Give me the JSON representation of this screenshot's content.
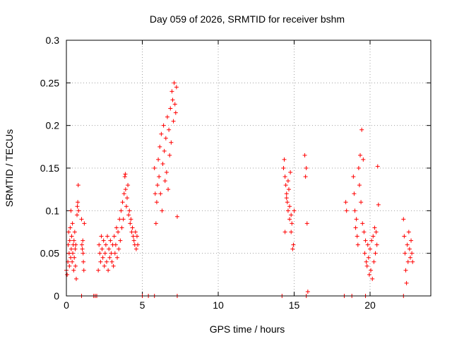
{
  "chart_data": {
    "type": "scatter",
    "title": "Day 059 of 2026, SRMTID for receiver bshm",
    "xlabel": "GPS time / hours",
    "ylabel": "SRMTID / TECUs",
    "xlim": [
      0,
      24
    ],
    "ylim": [
      0,
      0.3
    ],
    "xticks": [
      0,
      5,
      10,
      15,
      20
    ],
    "xtick_labels": [
      "0",
      "5",
      "10",
      "15",
      "20"
    ],
    "yticks": [
      0,
      0.05,
      0.1,
      0.15,
      0.2,
      0.25,
      0.3
    ],
    "ytick_labels": [
      "0",
      "0.05",
      "0.1",
      "0.15",
      "0.2",
      "0.25",
      "0.3"
    ],
    "grid": true,
    "marker": "plus",
    "color": "#ff0000",
    "series": [
      {
        "name": "SRMTID",
        "points": [
          [
            0.0,
            0.03
          ],
          [
            0.05,
            0.025
          ],
          [
            0.1,
            0.04
          ],
          [
            0.12,
            0.06
          ],
          [
            0.15,
            0.075
          ],
          [
            0.18,
            0.05
          ],
          [
            0.2,
            0.035
          ],
          [
            0.22,
            0.065
          ],
          [
            0.25,
            0.08
          ],
          [
            0.28,
            0.045
          ],
          [
            0.3,
            0.1
          ],
          [
            0.32,
            0.055
          ],
          [
            0.35,
            0.07
          ],
          [
            0.38,
            0.04
          ],
          [
            0.4,
            0.085
          ],
          [
            0.42,
            0.05
          ],
          [
            0.45,
            0.06
          ],
          [
            0.48,
            0.03
          ],
          [
            0.5,
            0.065
          ],
          [
            0.52,
            0.045
          ],
          [
            0.55,
            0.075
          ],
          [
            0.58,
            0.055
          ],
          [
            0.6,
            0.035
          ],
          [
            0.62,
            0.06
          ],
          [
            0.65,
            0.02
          ],
          [
            0.7,
            0.095
          ],
          [
            0.72,
            0.105
          ],
          [
            0.75,
            0.11
          ],
          [
            0.78,
            0.13
          ],
          [
            0.8,
            0.1
          ],
          [
            1.0,
            0.09
          ],
          [
            1.02,
            0.06
          ],
          [
            1.05,
            0.055
          ],
          [
            1.08,
            0.065
          ],
          [
            1.1,
            0.05
          ],
          [
            1.12,
            0.04
          ],
          [
            1.15,
            0.03
          ],
          [
            1.18,
            0.085
          ],
          [
            2.1,
            0.03
          ],
          [
            2.15,
            0.06
          ],
          [
            2.2,
            0.05
          ],
          [
            2.25,
            0.04
          ],
          [
            2.3,
            0.07
          ],
          [
            2.35,
            0.055
          ],
          [
            2.4,
            0.045
          ],
          [
            2.45,
            0.065
          ],
          [
            2.5,
            0.035
          ],
          [
            2.55,
            0.05
          ],
          [
            2.6,
            0.06
          ],
          [
            2.65,
            0.04
          ],
          [
            2.7,
            0.07
          ],
          [
            2.75,
            0.03
          ],
          [
            2.8,
            0.055
          ],
          [
            2.85,
            0.045
          ],
          [
            2.9,
            0.065
          ],
          [
            2.95,
            0.05
          ],
          [
            3.0,
            0.04
          ],
          [
            3.05,
            0.06
          ],
          [
            3.1,
            0.035
          ],
          [
            3.15,
            0.07
          ],
          [
            3.2,
            0.05
          ],
          [
            3.25,
            0.06
          ],
          [
            3.3,
            0.08
          ],
          [
            3.35,
            0.045
          ],
          [
            3.4,
            0.075
          ],
          [
            3.45,
            0.055
          ],
          [
            3.5,
            0.09
          ],
          [
            3.55,
            0.065
          ],
          [
            3.6,
            0.1
          ],
          [
            3.65,
            0.08
          ],
          [
            3.7,
            0.11
          ],
          [
            3.75,
            0.09
          ],
          [
            3.8,
            0.12
          ],
          [
            3.85,
            0.14
          ],
          [
            3.88,
            0.143
          ],
          [
            3.9,
            0.125
          ],
          [
            3.95,
            0.105
          ],
          [
            4.0,
            0.115
          ],
          [
            4.05,
            0.13
          ],
          [
            4.1,
            0.095
          ],
          [
            4.15,
            0.1
          ],
          [
            4.2,
            0.085
          ],
          [
            4.25,
            0.09
          ],
          [
            4.3,
            0.075
          ],
          [
            4.35,
            0.08
          ],
          [
            4.4,
            0.07
          ],
          [
            4.45,
            0.065
          ],
          [
            4.5,
            0.06
          ],
          [
            4.55,
            0.075
          ],
          [
            4.6,
            0.055
          ],
          [
            4.65,
            0.07
          ],
          [
            4.7,
            0.06
          ],
          [
            5.8,
            0.15
          ],
          [
            5.85,
            0.12
          ],
          [
            5.9,
            0.085
          ],
          [
            5.95,
            0.11
          ],
          [
            6.0,
            0.13
          ],
          [
            6.05,
            0.16
          ],
          [
            6.1,
            0.14
          ],
          [
            6.15,
            0.175
          ],
          [
            6.2,
            0.12
          ],
          [
            6.25,
            0.19
          ],
          [
            6.3,
            0.1
          ],
          [
            6.35,
            0.155
          ],
          [
            6.4,
            0.2
          ],
          [
            6.45,
            0.17
          ],
          [
            6.5,
            0.135
          ],
          [
            6.55,
            0.185
          ],
          [
            6.6,
            0.145
          ],
          [
            6.65,
            0.21
          ],
          [
            6.7,
            0.125
          ],
          [
            6.75,
            0.195
          ],
          [
            6.8,
            0.165
          ],
          [
            6.85,
            0.22
          ],
          [
            6.9,
            0.18
          ],
          [
            6.95,
            0.24
          ],
          [
            7.0,
            0.23
          ],
          [
            7.05,
            0.205
          ],
          [
            7.1,
            0.25
          ],
          [
            7.15,
            0.225
          ],
          [
            7.2,
            0.215
          ],
          [
            7.25,
            0.245
          ],
          [
            7.3,
            0.093
          ],
          [
            14.3,
            0.15
          ],
          [
            14.35,
            0.16
          ],
          [
            14.4,
            0.14
          ],
          [
            14.45,
            0.13
          ],
          [
            14.5,
            0.12
          ],
          [
            14.55,
            0.11
          ],
          [
            14.6,
            0.1
          ],
          [
            14.65,
            0.125
          ],
          [
            14.7,
            0.09
          ],
          [
            14.75,
            0.145
          ],
          [
            14.8,
            0.075
          ],
          [
            14.85,
            0.085
          ],
          [
            14.9,
            0.055
          ],
          [
            14.95,
            0.06
          ],
          [
            15.0,
            0.1
          ],
          [
            14.4,
            0.075
          ],
          [
            14.5,
            0.115
          ],
          [
            14.6,
            0.135
          ],
          [
            14.7,
            0.105
          ],
          [
            14.8,
            0.095
          ],
          [
            15.7,
            0.165
          ],
          [
            15.75,
            0.14
          ],
          [
            15.8,
            0.15
          ],
          [
            15.85,
            0.085
          ],
          [
            15.9,
            0.005
          ],
          [
            18.4,
            0.11
          ],
          [
            18.45,
            0.1
          ],
          [
            18.9,
            0.14
          ],
          [
            18.95,
            0.12
          ],
          [
            19.0,
            0.1
          ],
          [
            19.05,
            0.08
          ],
          [
            19.1,
            0.09
          ],
          [
            19.15,
            0.07
          ],
          [
            19.2,
            0.06
          ],
          [
            19.25,
            0.15
          ],
          [
            19.3,
            0.13
          ],
          [
            19.35,
            0.165
          ],
          [
            19.4,
            0.11
          ],
          [
            19.45,
            0.195
          ],
          [
            19.5,
            0.085
          ],
          [
            19.55,
            0.16
          ],
          [
            19.6,
            0.075
          ],
          [
            19.65,
            0.05
          ],
          [
            19.7,
            0.065
          ],
          [
            19.75,
            0.04
          ],
          [
            19.8,
            0.035
          ],
          [
            19.85,
            0.06
          ],
          [
            19.9,
            0.045
          ],
          [
            19.95,
            0.025
          ],
          [
            20.0,
            0.055
          ],
          [
            20.05,
            0.03
          ],
          [
            20.1,
            0.065
          ],
          [
            20.15,
            0.02
          ],
          [
            20.2,
            0.07
          ],
          [
            20.25,
            0.04
          ],
          [
            20.3,
            0.08
          ],
          [
            20.35,
            0.05
          ],
          [
            20.4,
            0.075
          ],
          [
            20.45,
            0.06
          ],
          [
            20.5,
            0.152
          ],
          [
            20.55,
            0.107
          ],
          [
            22.2,
            0.09
          ],
          [
            22.25,
            0.07
          ],
          [
            22.3,
            0.05
          ],
          [
            22.35,
            0.03
          ],
          [
            22.4,
            0.015
          ],
          [
            22.45,
            0.06
          ],
          [
            22.5,
            0.04
          ],
          [
            22.55,
            0.075
          ],
          [
            22.6,
            0.055
          ],
          [
            22.65,
            0.045
          ],
          [
            22.7,
            0.065
          ],
          [
            22.75,
            0.05
          ],
          [
            22.8,
            0.04
          ],
          [
            1.0,
            0.0
          ],
          [
            1.8,
            0.0
          ],
          [
            1.9,
            0.0
          ],
          [
            2.0,
            0.0
          ],
          [
            5.0,
            0.0
          ],
          [
            5.4,
            0.0
          ],
          [
            5.8,
            0.0
          ],
          [
            7.3,
            0.0
          ],
          [
            14.2,
            0.0
          ],
          [
            15.8,
            0.0
          ],
          [
            18.3,
            0.0
          ],
          [
            18.8,
            0.0
          ],
          [
            19.7,
            0.0
          ],
          [
            22.2,
            0.0
          ]
        ]
      }
    ]
  }
}
